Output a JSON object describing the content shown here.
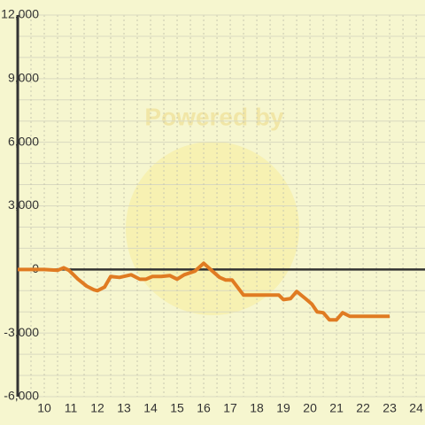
{
  "chart_data": {
    "type": "line",
    "watermark": "Powered by",
    "x": [
      9,
      10,
      10.5,
      10.73,
      10.93,
      11.27,
      11.6,
      11.87,
      12,
      12.27,
      12.5,
      12.83,
      13.27,
      13.6,
      13.83,
      14.07,
      14.4,
      14.73,
      15,
      15.27,
      15.67,
      16,
      16.33,
      16.6,
      16.83,
      17.07,
      17.5,
      18,
      18.5,
      18.83,
      19,
      19.27,
      19.5,
      19.83,
      20.07,
      20.27,
      20.5,
      20.73,
      21,
      21.23,
      21.5,
      23
    ],
    "series": [
      {
        "color": "#e07b22",
        "values": [
          0,
          0,
          -40,
          80,
          -40,
          -460,
          -790,
          -960,
          -1000,
          -830,
          -330,
          -375,
          -250,
          -460,
          -460,
          -330,
          -330,
          -290,
          -460,
          -250,
          -80,
          290,
          -80,
          -375,
          -500,
          -500,
          -1210,
          -1210,
          -1210,
          -1210,
          -1420,
          -1375,
          -1040,
          -1375,
          -1630,
          -2000,
          -2040,
          -2375,
          -2375,
          -2040,
          -2210,
          -2210
        ]
      }
    ],
    "xlim": [
      9,
      24.33
    ],
    "xticks": [
      10,
      11,
      12,
      13,
      14,
      15,
      16,
      17,
      18,
      19,
      20,
      21,
      22,
      23,
      24
    ],
    "xminorticks": [
      9.5,
      10.5,
      11.5,
      12.5,
      13.5,
      14.5,
      15.5,
      16.5,
      17.5,
      18.5,
      19.5,
      20.5,
      21.5,
      22.5,
      23.5
    ],
    "ylim": [
      -6000,
      12000
    ],
    "yticks": [
      {
        "value": -6000,
        "label": "-6,000"
      },
      {
        "value": -3000,
        "label": "-3,000"
      },
      0,
      {
        "value": 3000,
        "label": "3,000"
      },
      {
        "value": 6000,
        "label": "6,000"
      },
      {
        "value": 9000,
        "label": "9,000"
      },
      {
        "value": 12000,
        "label": "12,000"
      }
    ],
    "yminorticks": [
      -5000,
      -4000,
      -2000,
      -1000,
      1000,
      2000,
      4000,
      5000,
      7000,
      8000,
      10000,
      11000
    ],
    "grid": true
  }
}
